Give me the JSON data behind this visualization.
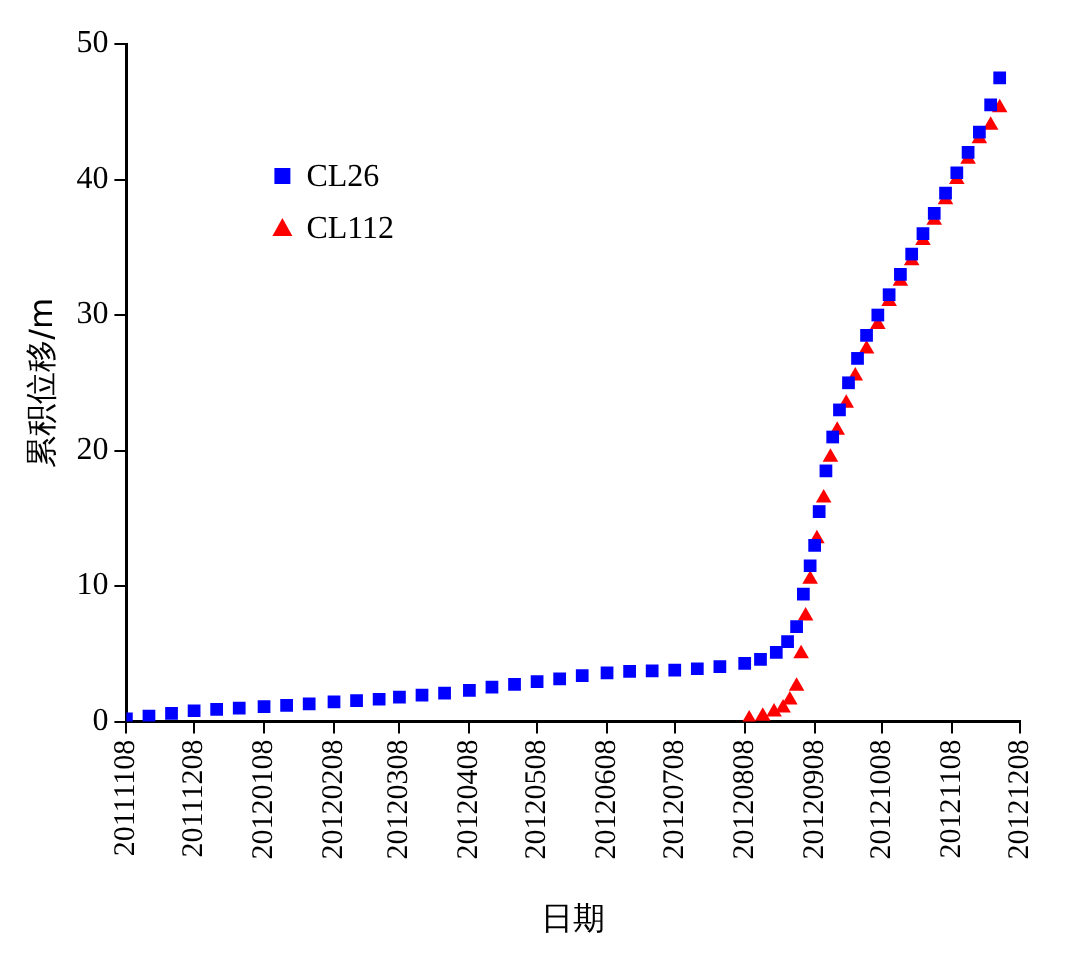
{
  "chart_data": {
    "type": "scatter",
    "xlabel": "日期",
    "ylabel": "累积位移/m",
    "legend": "top left",
    "xlim": [
      "2011-11-08",
      "2012-12-08"
    ],
    "xticks": [
      {
        "value": "2011-11-08",
        "label": "20111108"
      },
      {
        "value": "2011-12-08",
        "label": "20111208"
      },
      {
        "value": "2012-01-08",
        "label": "20120108"
      },
      {
        "value": "2012-02-08",
        "label": "20120208"
      },
      {
        "value": "2012-03-08",
        "label": "20120308"
      },
      {
        "value": "2012-04-08",
        "label": "20120408"
      },
      {
        "value": "2012-05-08",
        "label": "20120508"
      },
      {
        "value": "2012-06-08",
        "label": "20120608"
      },
      {
        "value": "2012-07-08",
        "label": "20120708"
      },
      {
        "value": "2012-08-08",
        "label": "20120808"
      },
      {
        "value": "2012-09-08",
        "label": "20120908"
      },
      {
        "value": "2012-10-08",
        "label": "20121008"
      },
      {
        "value": "2012-11-08",
        "label": "20121108"
      },
      {
        "value": "2012-12-08",
        "label": "20121208"
      }
    ],
    "ylim": [
      0,
      50
    ],
    "yticks": [
      0,
      10,
      20,
      30,
      40,
      50
    ],
    "grid": false,
    "series": [
      {
        "name": "CL26",
        "color": "#0000ff",
        "marker": "square",
        "x": [
          "2011-11-08",
          "2011-11-18",
          "2011-11-28",
          "2011-12-08",
          "2011-12-18",
          "2011-12-28",
          "2012-01-08",
          "2012-01-18",
          "2012-01-28",
          "2012-02-08",
          "2012-02-18",
          "2012-02-28",
          "2012-03-08",
          "2012-03-18",
          "2012-03-28",
          "2012-04-08",
          "2012-04-18",
          "2012-04-28",
          "2012-05-08",
          "2012-05-18",
          "2012-05-28",
          "2012-06-08",
          "2012-06-18",
          "2012-06-28",
          "2012-07-08",
          "2012-07-18",
          "2012-07-28",
          "2012-08-08",
          "2012-08-15",
          "2012-08-22",
          "2012-08-27",
          "2012-08-31",
          "2012-09-03",
          "2012-09-06",
          "2012-09-08",
          "2012-09-10",
          "2012-09-13",
          "2012-09-16",
          "2012-09-19",
          "2012-09-23",
          "2012-09-27",
          "2012-10-01",
          "2012-10-06",
          "2012-10-11",
          "2012-10-16",
          "2012-10-21",
          "2012-10-26",
          "2012-10-31",
          "2012-11-05",
          "2012-11-10",
          "2012-11-15",
          "2012-11-20",
          "2012-11-25",
          "2012-11-29"
        ],
        "values": [
          0.2,
          0.4,
          0.6,
          0.8,
          0.9,
          1.0,
          1.1,
          1.2,
          1.3,
          1.45,
          1.55,
          1.65,
          1.8,
          1.95,
          2.1,
          2.3,
          2.55,
          2.75,
          2.95,
          3.15,
          3.4,
          3.6,
          3.7,
          3.75,
          3.8,
          3.9,
          4.05,
          4.3,
          4.6,
          5.1,
          5.9,
          7.0,
          9.4,
          11.5,
          13.0,
          15.5,
          18.5,
          21.0,
          23.0,
          25.0,
          26.8,
          28.5,
          30.0,
          31.5,
          33.0,
          34.5,
          36.0,
          37.5,
          39.0,
          40.5,
          42.0,
          43.5,
          45.5,
          47.5
        ]
      },
      {
        "name": "CL112",
        "color": "#ff0000",
        "marker": "triangle",
        "x": [
          "2012-08-10",
          "2012-08-16",
          "2012-08-21",
          "2012-08-25",
          "2012-08-28",
          "2012-08-31",
          "2012-09-02",
          "2012-09-04",
          "2012-09-06",
          "2012-09-09",
          "2012-09-12",
          "2012-09-15",
          "2012-09-18",
          "2012-09-22",
          "2012-09-26",
          "2012-10-01",
          "2012-10-06",
          "2012-10-11",
          "2012-10-16",
          "2012-10-21",
          "2012-10-26",
          "2012-10-31",
          "2012-11-05",
          "2012-11-10",
          "2012-11-15",
          "2012-11-20",
          "2012-11-25",
          "2012-11-29"
        ],
        "values": [
          0.2,
          0.4,
          0.7,
          1.0,
          1.6,
          2.6,
          5.0,
          7.8,
          10.5,
          13.5,
          16.5,
          19.5,
          21.5,
          23.5,
          25.5,
          27.5,
          29.3,
          31.0,
          32.5,
          34.0,
          35.5,
          37.0,
          38.5,
          40.0,
          41.5,
          43.0,
          44.0,
          45.3
        ]
      }
    ]
  }
}
